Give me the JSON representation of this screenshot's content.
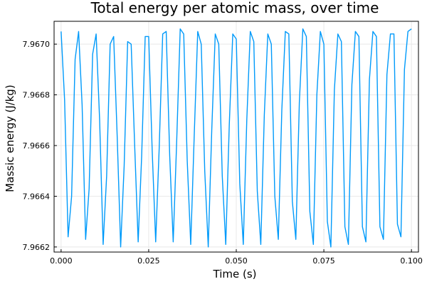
{
  "chart_data": {
    "type": "line",
    "title": "Total energy per atomic mass, over time",
    "xlabel": "Time (s)",
    "ylabel": "Massic energy (J/kg)",
    "xlim": [
      -0.002,
      0.102
    ],
    "ylim": [
      7.96618,
      7.96709
    ],
    "xticks": [
      0.0,
      0.025,
      0.05,
      0.075,
      0.1
    ],
    "xtick_labels": [
      "0.000",
      "0.025",
      "0.050",
      "0.075",
      "0.100"
    ],
    "yticks": [
      7.9662,
      7.9664,
      7.9666,
      7.9668,
      7.967
    ],
    "ytick_labels": [
      "7.9662",
      "7.9664",
      "7.9666",
      "7.9668",
      "7.9670"
    ],
    "grid": true,
    "legend": "none",
    "series": [
      {
        "color": "#009AFA",
        "x": [
          0.0,
          0.001,
          0.002,
          0.003,
          0.004,
          0.005,
          0.006,
          0.007,
          0.008,
          0.009,
          0.01,
          0.011,
          0.012,
          0.013,
          0.014,
          0.015,
          0.016,
          0.017,
          0.018,
          0.019,
          0.02,
          0.021,
          0.022,
          0.023,
          0.024,
          0.025,
          0.026,
          0.027,
          0.028,
          0.029,
          0.03,
          0.031,
          0.032,
          0.033,
          0.034,
          0.035,
          0.036,
          0.037,
          0.038,
          0.039,
          0.04,
          0.041,
          0.042,
          0.043,
          0.044,
          0.045,
          0.046,
          0.047,
          0.048,
          0.049,
          0.05,
          0.051,
          0.052,
          0.053,
          0.054,
          0.055,
          0.056,
          0.057,
          0.058,
          0.059,
          0.06,
          0.061,
          0.062,
          0.063,
          0.064,
          0.065,
          0.066,
          0.067,
          0.068,
          0.069,
          0.07,
          0.071,
          0.072,
          0.073,
          0.074,
          0.075,
          0.076,
          0.077,
          0.078,
          0.079,
          0.08,
          0.081,
          0.082,
          0.083,
          0.084,
          0.085,
          0.086,
          0.087,
          0.088,
          0.089,
          0.09,
          0.091,
          0.092,
          0.093,
          0.094,
          0.095,
          0.096,
          0.097,
          0.098,
          0.099,
          0.1
        ],
        "y": [
          7.96705,
          7.96678,
          7.96624,
          7.9664,
          7.96694,
          7.96705,
          7.96676,
          7.96623,
          7.96643,
          7.96696,
          7.96704,
          7.9667,
          7.96621,
          7.96648,
          7.967,
          7.96703,
          7.96664,
          7.9662,
          7.96652,
          7.96701,
          7.967,
          7.9666,
          7.96622,
          7.96656,
          7.96703,
          7.96703,
          7.96658,
          7.96622,
          7.96659,
          7.96704,
          7.96705,
          7.96656,
          7.96622,
          7.96662,
          7.96706,
          7.96704,
          7.96654,
          7.96621,
          7.96664,
          7.96705,
          7.967,
          7.9665,
          7.9662,
          7.96666,
          7.96704,
          7.967,
          7.96648,
          7.96621,
          7.96668,
          7.96704,
          7.96702,
          7.96645,
          7.96621,
          7.9667,
          7.96705,
          7.96701,
          7.96642,
          7.96621,
          7.96672,
          7.96704,
          7.967,
          7.9664,
          7.96623,
          7.96674,
          7.96705,
          7.96704,
          7.96638,
          7.96623,
          7.96677,
          7.96706,
          7.96703,
          7.96634,
          7.96621,
          7.9668,
          7.96705,
          7.967,
          7.9663,
          7.9662,
          7.96682,
          7.96704,
          7.96701,
          7.96628,
          7.96621,
          7.96684,
          7.96705,
          7.96703,
          7.96628,
          7.96622,
          7.96686,
          7.96705,
          7.96703,
          7.96628,
          7.96623,
          7.96688,
          7.96704,
          7.96704,
          7.96629,
          7.96624,
          7.9669,
          7.96705,
          7.96706
        ]
      }
    ]
  }
}
